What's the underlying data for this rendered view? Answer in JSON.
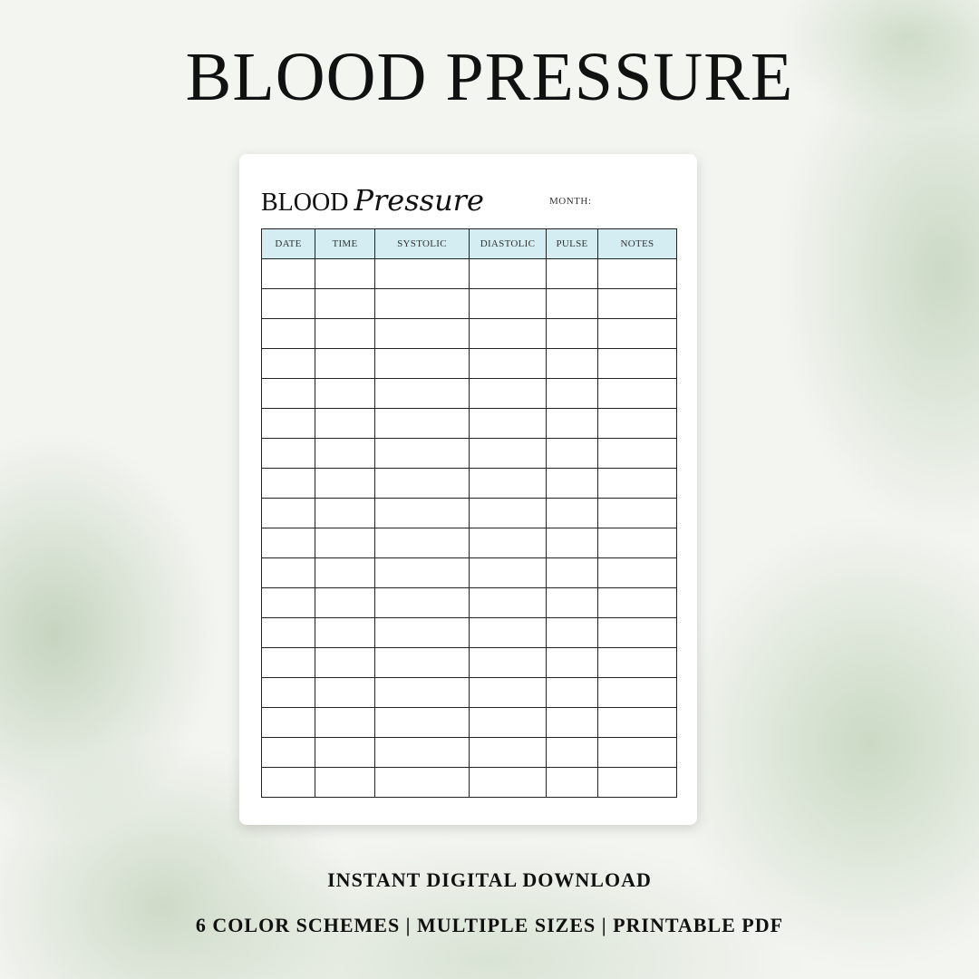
{
  "headline": "BLOOD PRESSURE",
  "sheet": {
    "title_plain": "BLOOD",
    "title_script": "Pressure",
    "month_label": "MONTH:",
    "columns": [
      "DATE",
      "TIME",
      "SYSTOLIC",
      "DIASTOLIC",
      "PULSE",
      "NOTES"
    ],
    "header_color": "#d3edf2"
  },
  "footer": {
    "line1": "INSTANT DIGITAL DOWNLOAD",
    "line2": "6 COLOR SCHEMES | MULTIPLE SIZES | PRINTABLE PDF"
  }
}
